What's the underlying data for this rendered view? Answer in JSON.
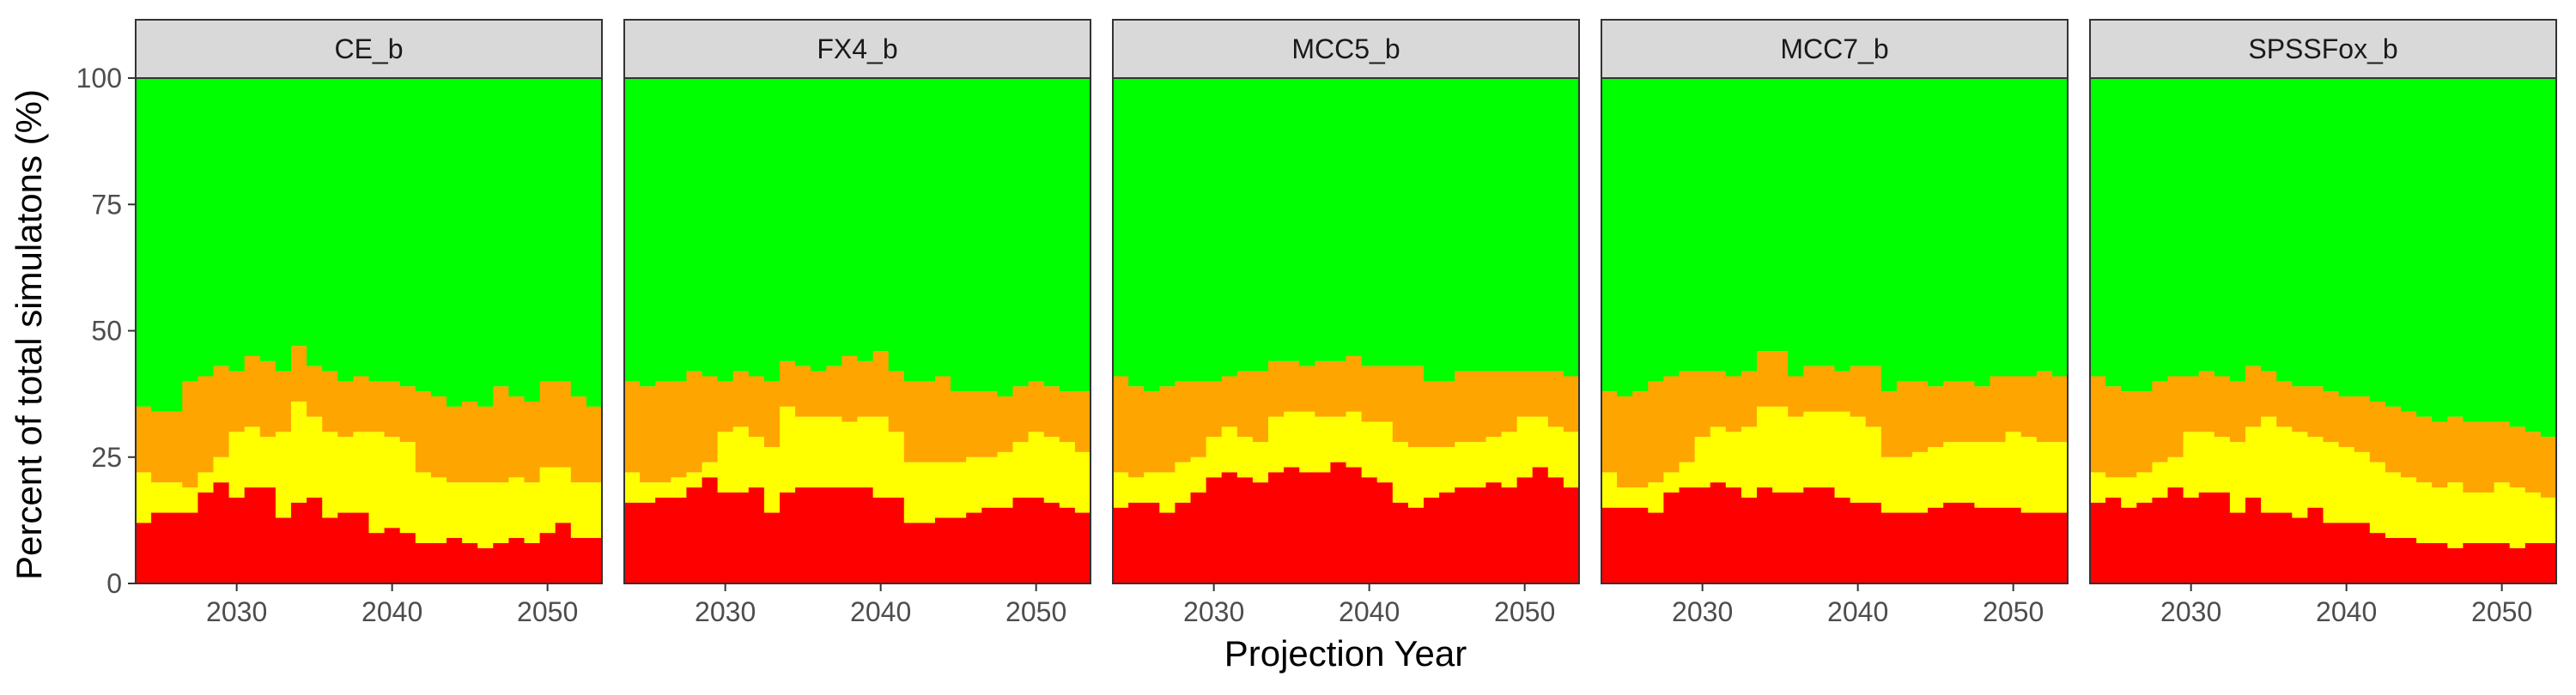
{
  "chart_data": {
    "type": "bar",
    "stacked": true,
    "xlabel": "Projection Year",
    "ylabel": "Percent of total simulatons (%)",
    "xlim": [
      2023.5,
      2053.5
    ],
    "ylim": [
      0,
      100
    ],
    "x_ticks": [
      2030,
      2040,
      2050
    ],
    "y_ticks": [
      0,
      25,
      50,
      75,
      100
    ],
    "grid": false,
    "legend": "none",
    "years": [
      2024,
      2025,
      2026,
      2027,
      2028,
      2029,
      2030,
      2031,
      2032,
      2033,
      2034,
      2035,
      2036,
      2037,
      2038,
      2039,
      2040,
      2041,
      2042,
      2043,
      2044,
      2045,
      2046,
      2047,
      2048,
      2049,
      2050,
      2051,
      2052,
      2053
    ],
    "colors": {
      "red": "#ff0000",
      "yellow": "#ffff00",
      "orange": "#ffa500",
      "green": "#00ff00"
    },
    "panels": [
      {
        "name": "CE_b",
        "red": [
          12,
          14,
          14,
          14,
          18,
          20,
          17,
          19,
          19,
          13,
          16,
          17,
          13,
          14,
          14,
          10,
          11,
          10,
          8,
          8,
          9,
          8,
          7,
          8,
          9,
          8,
          10,
          12,
          9,
          9
        ],
        "yellow": [
          22,
          20,
          20,
          19,
          22,
          25,
          30,
          31,
          29,
          30,
          36,
          33,
          30,
          29,
          30,
          30,
          29,
          28,
          22,
          21,
          20,
          20,
          20,
          20,
          21,
          20,
          23,
          23,
          20,
          20
        ],
        "orange": [
          35,
          34,
          34,
          40,
          41,
          43,
          42,
          45,
          44,
          42,
          47,
          43,
          42,
          40,
          41,
          40,
          40,
          39,
          38,
          37,
          35,
          36,
          35,
          39,
          37,
          36,
          40,
          40,
          37,
          35
        ]
      },
      {
        "name": "FX4_b",
        "red": [
          16,
          16,
          17,
          17,
          19,
          21,
          18,
          18,
          19,
          14,
          18,
          19,
          19,
          19,
          19,
          19,
          17,
          17,
          12,
          12,
          13,
          13,
          14,
          15,
          15,
          17,
          17,
          16,
          15,
          14
        ],
        "yellow": [
          22,
          20,
          20,
          21,
          22,
          24,
          30,
          31,
          29,
          27,
          35,
          33,
          33,
          33,
          32,
          33,
          33,
          30,
          24,
          24,
          24,
          24,
          25,
          25,
          26,
          28,
          30,
          29,
          28,
          26
        ],
        "orange": [
          40,
          39,
          40,
          40,
          42,
          41,
          40,
          42,
          41,
          40,
          44,
          43,
          42,
          43,
          45,
          44,
          46,
          42,
          40,
          40,
          41,
          38,
          38,
          38,
          37,
          39,
          40,
          39,
          38,
          38
        ]
      },
      {
        "name": "MCC5_b",
        "red": [
          15,
          16,
          16,
          14,
          16,
          18,
          21,
          22,
          21,
          20,
          22,
          23,
          22,
          22,
          24,
          23,
          21,
          20,
          16,
          15,
          17,
          18,
          19,
          19,
          20,
          19,
          21,
          23,
          21,
          19
        ],
        "yellow": [
          22,
          21,
          22,
          22,
          24,
          25,
          29,
          31,
          29,
          28,
          33,
          34,
          34,
          33,
          33,
          34,
          32,
          32,
          28,
          27,
          27,
          27,
          28,
          28,
          29,
          30,
          33,
          33,
          31,
          30
        ],
        "orange": [
          41,
          39,
          38,
          39,
          40,
          40,
          40,
          41,
          42,
          42,
          44,
          44,
          43,
          44,
          44,
          45,
          43,
          43,
          43,
          43,
          40,
          40,
          42,
          42,
          42,
          42,
          42,
          42,
          42,
          41
        ]
      },
      {
        "name": "MCC7_b",
        "red": [
          15,
          15,
          15,
          14,
          18,
          19,
          19,
          20,
          19,
          17,
          19,
          18,
          18,
          19,
          19,
          17,
          16,
          16,
          14,
          14,
          14,
          15,
          16,
          16,
          15,
          15,
          15,
          14,
          14,
          14
        ],
        "yellow": [
          22,
          19,
          19,
          20,
          22,
          24,
          29,
          31,
          30,
          31,
          35,
          35,
          33,
          34,
          34,
          34,
          33,
          31,
          25,
          25,
          26,
          27,
          28,
          28,
          28,
          28,
          30,
          29,
          28,
          28
        ],
        "orange": [
          38,
          37,
          38,
          40,
          41,
          42,
          42,
          42,
          41,
          42,
          46,
          46,
          41,
          43,
          43,
          42,
          43,
          43,
          38,
          40,
          40,
          39,
          40,
          40,
          39,
          41,
          41,
          41,
          42,
          41
        ]
      },
      {
        "name": "SPSSFox_b",
        "red": [
          16,
          17,
          15,
          16,
          17,
          19,
          17,
          18,
          18,
          14,
          17,
          14,
          14,
          13,
          15,
          12,
          12,
          12,
          10,
          9,
          9,
          8,
          8,
          7,
          8,
          8,
          8,
          7,
          8,
          8
        ],
        "yellow": [
          22,
          21,
          21,
          22,
          24,
          25,
          30,
          30,
          29,
          28,
          31,
          33,
          31,
          30,
          29,
          28,
          27,
          26,
          24,
          22,
          21,
          20,
          19,
          20,
          18,
          18,
          20,
          19,
          18,
          17
        ],
        "orange": [
          41,
          39,
          38,
          38,
          40,
          41,
          41,
          42,
          41,
          40,
          43,
          42,
          40,
          39,
          39,
          38,
          37,
          37,
          36,
          35,
          34,
          33,
          32,
          33,
          32,
          32,
          32,
          31,
          30,
          29
        ]
      }
    ]
  }
}
